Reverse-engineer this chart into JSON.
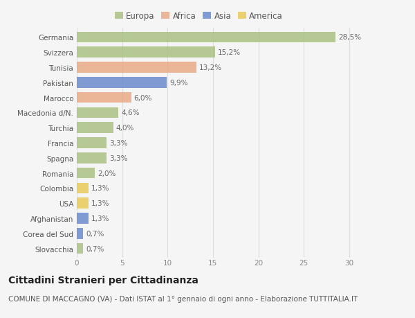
{
  "countries": [
    "Germania",
    "Svizzera",
    "Tunisia",
    "Pakistan",
    "Marocco",
    "Macedonia d/N.",
    "Turchia",
    "Francia",
    "Spagna",
    "Romania",
    "Colombia",
    "USA",
    "Afghanistan",
    "Corea del Sud",
    "Slovacchia"
  ],
  "values": [
    28.5,
    15.2,
    13.2,
    9.9,
    6.0,
    4.6,
    4.0,
    3.3,
    3.3,
    2.0,
    1.3,
    1.3,
    1.3,
    0.7,
    0.7
  ],
  "labels": [
    "28,5%",
    "15,2%",
    "13,2%",
    "9,9%",
    "6,0%",
    "4,6%",
    "4,0%",
    "3,3%",
    "3,3%",
    "2,0%",
    "1,3%",
    "1,3%",
    "1,3%",
    "0,7%",
    "0,7%"
  ],
  "continents": [
    "Europa",
    "Europa",
    "Africa",
    "Asia",
    "Africa",
    "Europa",
    "Europa",
    "Europa",
    "Europa",
    "Europa",
    "America",
    "America",
    "Asia",
    "Asia",
    "Europa"
  ],
  "continent_colors": {
    "Europa": "#a8c080",
    "Africa": "#e8a882",
    "Asia": "#6688cc",
    "America": "#e8c850"
  },
  "legend_order": [
    "Europa",
    "Africa",
    "Asia",
    "America"
  ],
  "title": "Cittadini Stranieri per Cittadinanza",
  "subtitle": "COMUNE DI MACCAGNO (VA) - Dati ISTAT al 1° gennaio di ogni anno - Elaborazione TUTTITALIA.IT",
  "xlim": [
    0,
    32
  ],
  "xticks": [
    0,
    5,
    10,
    15,
    20,
    25,
    30
  ],
  "background_color": "#f5f5f5",
  "grid_color": "#dddddd",
  "bar_height": 0.72,
  "title_fontsize": 10,
  "subtitle_fontsize": 7.5,
  "label_fontsize": 7.5,
  "tick_fontsize": 7.5,
  "legend_fontsize": 8.5
}
